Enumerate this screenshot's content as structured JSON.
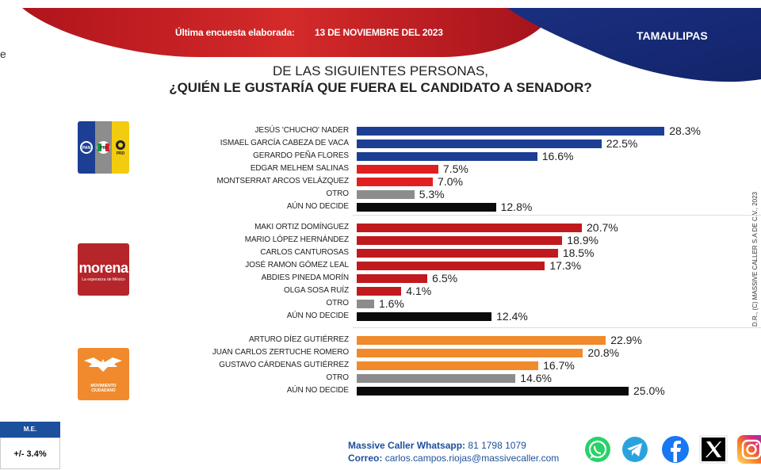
{
  "header": {
    "survey_label": "Última encuesta elaborada:",
    "survey_date": "13 DE NOVIEMBRE DEL 2023",
    "state": "TAMAULIPAS",
    "left_edge_text": "e"
  },
  "title": {
    "line1": "DE LAS SIGUIENTES PERSONAS,",
    "line2": "¿QUIÉN LE GUSTARÍA QUE FUERA EL CANDIDATO  A SENADOR?"
  },
  "parties": [
    {
      "name": "PAN-PRI-PRD coalition",
      "logo_text": [
        "PAN",
        "PRI",
        "PRD"
      ]
    },
    {
      "name": "Morena",
      "logo_text": "morena",
      "logo_subtext": "La esperanza de México"
    },
    {
      "name": "Movimiento Ciudadano",
      "logo_text": "MOVIMIENTO CIUDADANO"
    }
  ],
  "colors": {
    "blue": "#1c3f94",
    "red": "#e02020",
    "dark_red": "#c01a1e",
    "gray": "#8c8c8c",
    "black": "#0a0a0a",
    "orange": "#f08a2c",
    "brand_blue": "#1c4f9c"
  },
  "chart_data": {
    "type": "bar",
    "orientation": "horizontal",
    "title": "¿QUIÉN LE GUSTARÍA QUE FUERA EL CANDIDATO A SENADOR?",
    "subtitle": "DE LAS SIGUIENTES PERSONAS,",
    "unit": "%",
    "xlim": [
      0,
      30
    ],
    "groups": [
      {
        "party": "PAN-PRI-PRD",
        "items": [
          {
            "label": "JESÚS 'CHUCHO' NADER",
            "value": 28.3,
            "display": "28.3%",
            "color": "blue"
          },
          {
            "label": "ISMAEL GARCÍA CABEZA DE VACA",
            "value": 22.5,
            "display": "22.5%",
            "color": "blue"
          },
          {
            "label": "GERARDO PEÑA FLORES",
            "value": 16.6,
            "display": "16.6%",
            "color": "blue"
          },
          {
            "label": "EDGAR MELHEM SALINAS",
            "value": 7.5,
            "display": "7.5%",
            "color": "red"
          },
          {
            "label": "MONTSERRAT ARCOS VELÁZQUEZ",
            "value": 7.0,
            "display": "7.0%",
            "color": "red"
          },
          {
            "label": "OTRO",
            "value": 5.3,
            "display": "5.3%",
            "color": "gray"
          },
          {
            "label": "AÚN NO DECIDE",
            "value": 12.8,
            "display": "12.8%",
            "color": "black"
          }
        ]
      },
      {
        "party": "MORENA",
        "items": [
          {
            "label": "MAKI ORTIZ DOMÍNGUEZ",
            "value": 20.7,
            "display": "20.7%",
            "color": "dark_red"
          },
          {
            "label": "MARIO LÓPEZ HERNÁNDEZ",
            "value": 18.9,
            "display": "18.9%",
            "color": "dark_red"
          },
          {
            "label": "CARLOS CANTUROSAS",
            "value": 18.5,
            "display": "18.5%",
            "color": "dark_red"
          },
          {
            "label": "JOSÉ RAMON GÓMEZ LEAL",
            "value": 17.3,
            "display": "17.3%",
            "color": "dark_red"
          },
          {
            "label": "ABDIES PINEDA MORÍN",
            "value": 6.5,
            "display": "6.5%",
            "color": "dark_red"
          },
          {
            "label": "OLGA SOSA RUÍZ",
            "value": 4.1,
            "display": "4.1%",
            "color": "dark_red"
          },
          {
            "label": "OTRO",
            "value": 1.6,
            "display": "1.6%",
            "color": "gray"
          },
          {
            "label": "AÚN NO DECIDE",
            "value": 12.4,
            "display": "12.4%",
            "color": "black"
          }
        ]
      },
      {
        "party": "MOVIMIENTO CIUDADANO",
        "items": [
          {
            "label": "ARTURO DÍEZ GUTIÉRREZ",
            "value": 22.9,
            "display": "22.9%",
            "color": "orange"
          },
          {
            "label": "JUAN CARLOS ZERTUCHE ROMERO",
            "value": 20.8,
            "display": "20.8%",
            "color": "orange"
          },
          {
            "label": "GUSTAVO CÁRDENAS GUTIÉRREZ",
            "value": 16.7,
            "display": "16.7%",
            "color": "orange"
          },
          {
            "label": "OTRO",
            "value": 14.6,
            "display": "14.6%",
            "color": "gray"
          },
          {
            "label": "AÚN NO DECIDE",
            "value": 25.0,
            "display": "25.0%",
            "color": "black"
          }
        ]
      }
    ]
  },
  "side_credit": "D.R., (C) MASSIVE CALLER S.A DE C.V., 2023",
  "margin_of_error": {
    "label": "M.E.",
    "value": "+/- 3.4%"
  },
  "contact": {
    "whatsapp_label": "Massive Caller Whatsapp:",
    "whatsapp_number": "81 1798 1079",
    "email_label": "Correo:",
    "email": "carlos.campos.riojas@massivecaller.com"
  },
  "social": [
    {
      "name": "whatsapp-icon"
    },
    {
      "name": "telegram-icon"
    },
    {
      "name": "facebook-icon"
    },
    {
      "name": "x-icon"
    },
    {
      "name": "instagram-icon"
    }
  ]
}
